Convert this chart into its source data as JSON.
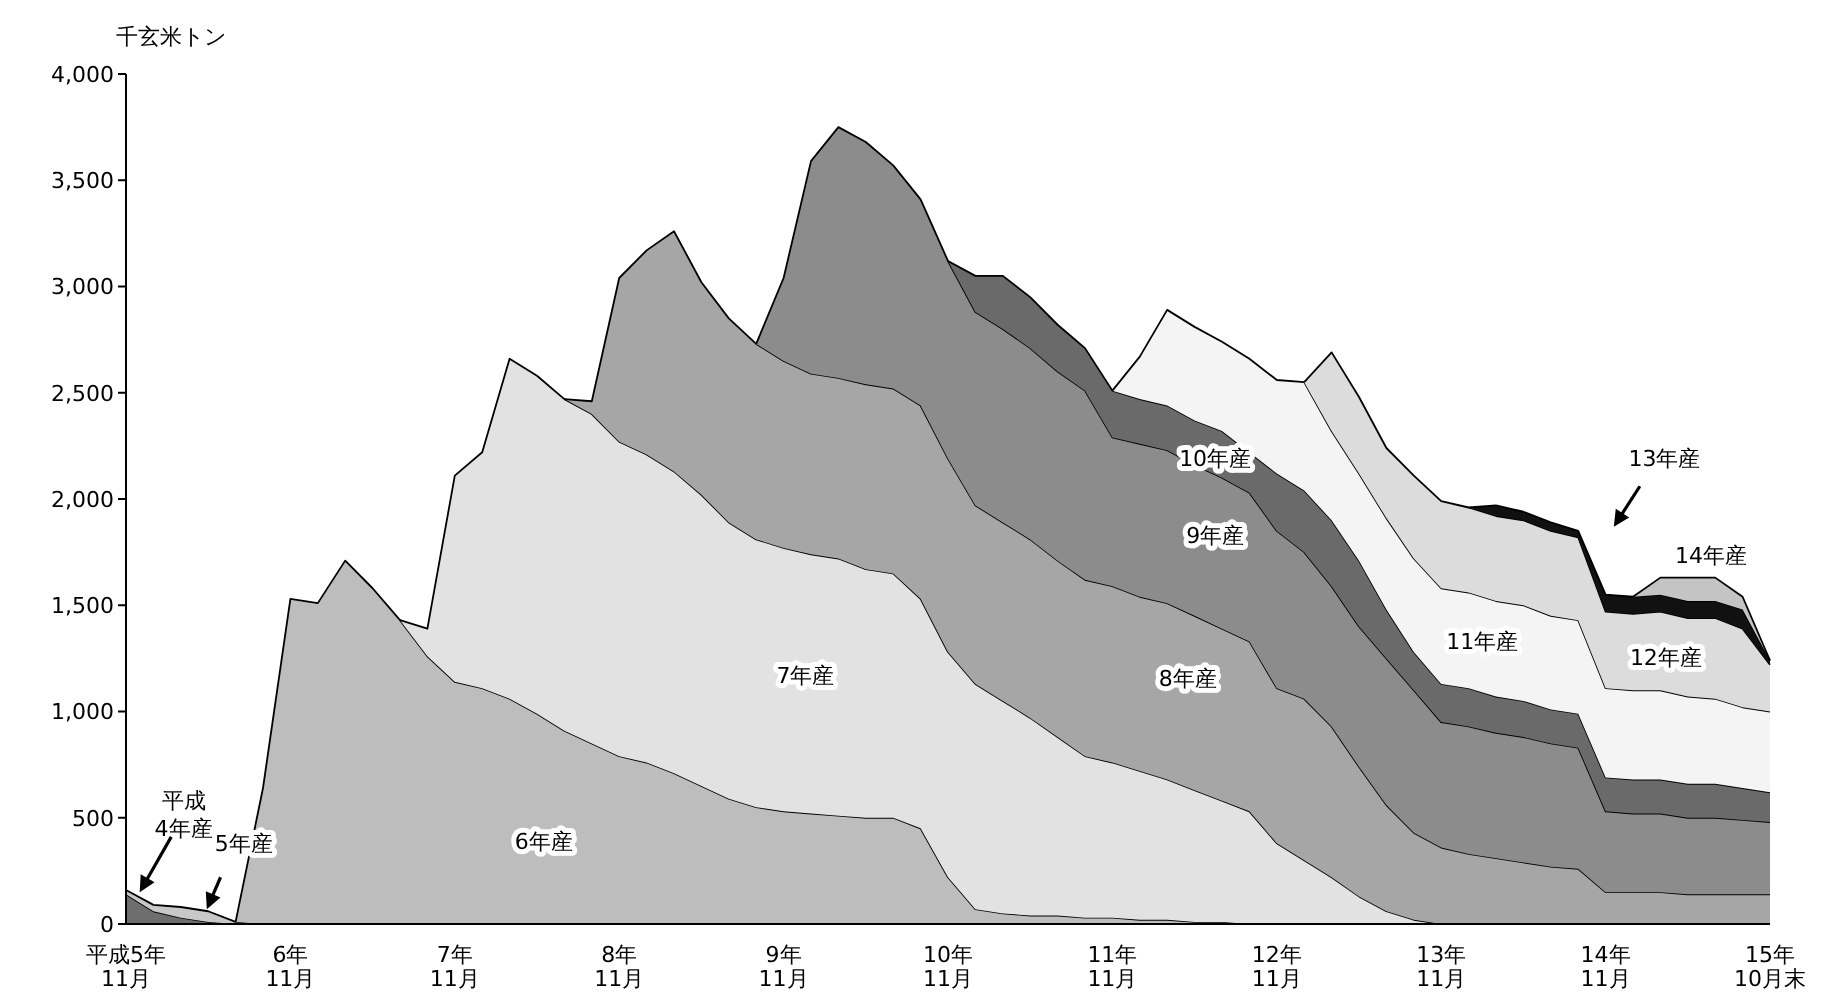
{
  "chart_data": {
    "type": "area",
    "stacked": true,
    "ylabel": "千玄米トン",
    "categories": [
      "平成5年\n11月",
      null,
      null,
      null,
      null,
      null,
      "6年\n11月",
      null,
      null,
      null,
      null,
      null,
      "7年\n11月",
      null,
      null,
      null,
      null,
      null,
      "8年\n11月",
      null,
      null,
      null,
      null,
      null,
      "9年\n11月",
      null,
      null,
      null,
      null,
      null,
      "10年\n11月",
      null,
      null,
      null,
      null,
      null,
      "11年\n11月",
      null,
      null,
      null,
      null,
      null,
      "12年\n11月",
      null,
      null,
      null,
      null,
      null,
      "13年\n11月",
      null,
      null,
      null,
      null,
      null,
      "14年\n11月",
      null,
      null,
      null,
      null,
      null,
      "15年\n10月末"
    ],
    "ylim": [
      0,
      4000
    ],
    "yticks": [
      0,
      500,
      {
        "value": 1000,
        "label": "1,000"
      },
      {
        "value": 1500,
        "label": "1,500"
      },
      {
        "value": 2000,
        "label": "2,000"
      },
      {
        "value": 2500,
        "label": "2,500"
      },
      {
        "value": 3000,
        "label": "3,000"
      },
      {
        "value": 3500,
        "label": "3,500"
      },
      {
        "value": 4000,
        "label": "4,000"
      }
    ],
    "series": [
      {
        "name": "平成 4年産",
        "color": "#6e6e6e",
        "values": [
          140,
          60,
          30,
          10,
          0,
          null,
          null,
          null,
          null,
          null,
          null,
          null,
          null,
          null,
          null,
          null,
          null,
          null,
          null,
          null,
          null,
          null,
          null,
          null,
          null,
          null,
          null,
          null,
          null,
          null,
          null,
          null,
          null,
          null,
          null,
          null,
          null,
          null,
          null,
          null,
          null,
          null,
          null,
          null,
          null,
          null,
          null,
          null,
          null,
          null,
          null,
          null,
          null,
          null,
          null,
          null,
          null,
          null,
          null,
          null,
          null
        ]
      },
      {
        "name": "5年産",
        "color": "#c8c8c8",
        "values": [
          20,
          30,
          50,
          50,
          10,
          0,
          null,
          null,
          null,
          null,
          null,
          null,
          null,
          null,
          null,
          null,
          null,
          null,
          null,
          null,
          null,
          null,
          null,
          null,
          null,
          null,
          null,
          null,
          null,
          null,
          null,
          null,
          null,
          null,
          null,
          null,
          null,
          null,
          null,
          null,
          null,
          null,
          null,
          null,
          null,
          null,
          null,
          null,
          null,
          null,
          null,
          null,
          null,
          null,
          null,
          null,
          null,
          null,
          null,
          null,
          null
        ]
      },
      {
        "name": "6年産",
        "color": "#bdbdbd",
        "values": [
          null,
          null,
          null,
          null,
          0,
          640,
          1530,
          1510,
          1710,
          1580,
          1430,
          1260,
          1140,
          1110,
          1060,
          990,
          910,
          850,
          790,
          760,
          710,
          650,
          590,
          550,
          530,
          520,
          510,
          500,
          500,
          450,
          220,
          70,
          50,
          40,
          40,
          30,
          30,
          20,
          20,
          10,
          10,
          0,
          null,
          null,
          null,
          null,
          null,
          null,
          null,
          null,
          null,
          null,
          null,
          null,
          null,
          null,
          null,
          null,
          null,
          null,
          null
        ]
      },
      {
        "name": "7年産",
        "color": "#e2e2e2",
        "values": [
          null,
          null,
          null,
          null,
          null,
          null,
          null,
          null,
          null,
          null,
          0,
          130,
          970,
          1110,
          1600,
          1590,
          1560,
          1550,
          1480,
          1450,
          1420,
          1370,
          1300,
          1260,
          1240,
          1220,
          1210,
          1170,
          1150,
          1080,
          1060,
          1060,
          1000,
          930,
          840,
          760,
          730,
          700,
          660,
          620,
          570,
          530,
          380,
          300,
          220,
          130,
          60,
          20,
          0,
          null,
          null,
          null,
          null,
          null,
          null,
          null,
          null,
          null,
          null,
          null,
          null
        ]
      },
      {
        "name": "8年産",
        "color": "#a6a6a6",
        "values": [
          null,
          null,
          null,
          null,
          null,
          null,
          null,
          null,
          null,
          null,
          null,
          null,
          null,
          null,
          null,
          null,
          0,
          60,
          770,
          960,
          1130,
          1000,
          960,
          920,
          880,
          850,
          850,
          870,
          870,
          910,
          910,
          840,
          840,
          840,
          830,
          830,
          830,
          820,
          830,
          820,
          810,
          800,
          730,
          760,
          710,
          610,
          500,
          410,
          360,
          330,
          310,
          290,
          270,
          260,
          150,
          150,
          150,
          140,
          140,
          140,
          140
        ]
      },
      {
        "name": "9年産",
        "color": "#8c8c8c",
        "values": [
          null,
          null,
          null,
          null,
          null,
          null,
          null,
          null,
          null,
          null,
          null,
          null,
          null,
          null,
          null,
          null,
          null,
          null,
          null,
          null,
          null,
          null,
          null,
          0,
          390,
          1000,
          1180,
          1140,
          1050,
          970,
          930,
          910,
          910,
          900,
          890,
          890,
          700,
          720,
          720,
          710,
          710,
          700,
          740,
          690,
          660,
          660,
          690,
          670,
          590,
          600,
          590,
          590,
          580,
          570,
          380,
          370,
          370,
          360,
          360,
          350,
          340
        ]
      },
      {
        "name": "10年産",
        "color": "#6a6a6a",
        "values": [
          null,
          null,
          null,
          null,
          null,
          null,
          null,
          null,
          null,
          null,
          null,
          null,
          null,
          null,
          null,
          null,
          null,
          null,
          null,
          null,
          null,
          null,
          null,
          null,
          null,
          null,
          null,
          null,
          null,
          null,
          0,
          170,
          250,
          240,
          220,
          200,
          220,
          210,
          210,
          210,
          220,
          190,
          270,
          290,
          310,
          310,
          230,
          180,
          180,
          180,
          170,
          170,
          160,
          160,
          160,
          160,
          160,
          160,
          160,
          150,
          140
        ]
      },
      {
        "name": "11年産",
        "color": "#f4f4f4",
        "values": [
          null,
          null,
          null,
          null,
          null,
          null,
          null,
          null,
          null,
          null,
          null,
          null,
          null,
          null,
          null,
          null,
          null,
          null,
          null,
          null,
          null,
          null,
          null,
          null,
          null,
          null,
          null,
          null,
          null,
          null,
          null,
          null,
          null,
          null,
          null,
          null,
          0,
          200,
          450,
          440,
          420,
          440,
          440,
          510,
          420,
          410,
          430,
          440,
          450,
          450,
          450,
          450,
          440,
          440,
          420,
          420,
          420,
          410,
          400,
          380,
          380
        ]
      },
      {
        "name": "12年産",
        "color": "#dcdcdc",
        "values": [
          null,
          null,
          null,
          null,
          null,
          null,
          null,
          null,
          null,
          null,
          null,
          null,
          null,
          null,
          null,
          null,
          null,
          null,
          null,
          null,
          null,
          null,
          null,
          null,
          null,
          null,
          null,
          null,
          null,
          null,
          null,
          null,
          null,
          null,
          null,
          null,
          null,
          null,
          null,
          null,
          null,
          null,
          null,
          0,
          370,
          360,
          330,
          390,
          410,
          400,
          400,
          400,
          400,
          390,
          360,
          360,
          370,
          370,
          380,
          370,
          220
        ]
      },
      {
        "name": "13年産",
        "color": "#111111",
        "values": [
          null,
          null,
          null,
          null,
          null,
          null,
          null,
          null,
          null,
          null,
          null,
          null,
          null,
          null,
          null,
          null,
          null,
          null,
          null,
          null,
          null,
          null,
          null,
          null,
          null,
          null,
          null,
          null,
          null,
          null,
          null,
          null,
          null,
          null,
          null,
          null,
          null,
          null,
          null,
          null,
          null,
          null,
          null,
          null,
          null,
          null,
          null,
          null,
          null,
          0,
          50,
          40,
          40,
          30,
          80,
          80,
          80,
          80,
          80,
          90,
          20
        ]
      },
      {
        "name": "14年産",
        "color": "#c4c4c4",
        "values": [
          null,
          null,
          null,
          null,
          null,
          null,
          null,
          null,
          null,
          null,
          null,
          null,
          null,
          null,
          null,
          null,
          null,
          null,
          null,
          null,
          null,
          null,
          null,
          null,
          null,
          null,
          null,
          null,
          null,
          null,
          null,
          null,
          null,
          null,
          null,
          null,
          null,
          null,
          null,
          null,
          null,
          null,
          null,
          null,
          null,
          null,
          null,
          null,
          null,
          null,
          null,
          null,
          null,
          null,
          null,
          0,
          80,
          110,
          110,
          60,
          0
        ]
      }
    ]
  }
}
